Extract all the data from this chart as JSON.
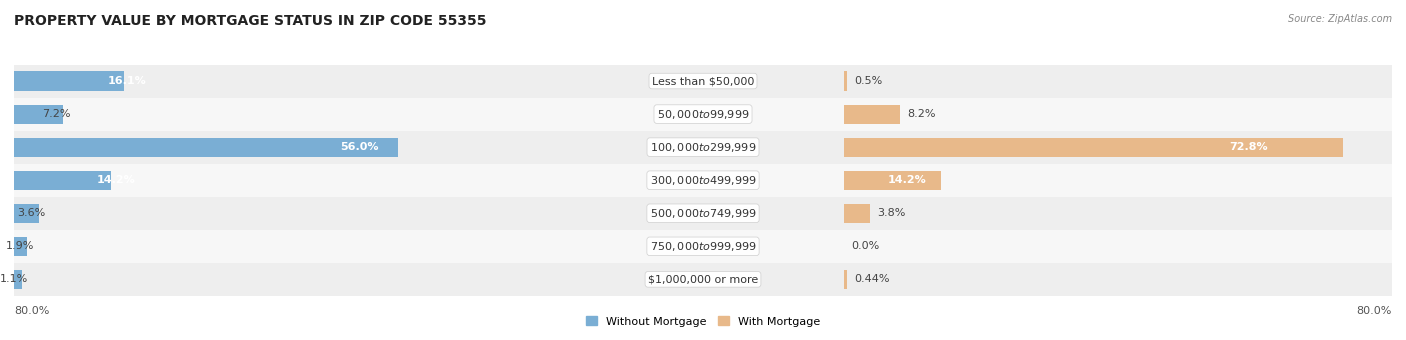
{
  "title": "PROPERTY VALUE BY MORTGAGE STATUS IN ZIP CODE 55355",
  "source": "Source: ZipAtlas.com",
  "categories": [
    "Less than $50,000",
    "$50,000 to $99,999",
    "$100,000 to $299,999",
    "$300,000 to $499,999",
    "$500,000 to $749,999",
    "$750,000 to $999,999",
    "$1,000,000 or more"
  ],
  "without_mortgage": [
    16.1,
    7.2,
    56.0,
    14.2,
    3.6,
    1.9,
    1.1
  ],
  "with_mortgage": [
    0.5,
    8.2,
    72.8,
    14.2,
    3.8,
    0.0,
    0.44
  ],
  "without_labels": [
    "16.1%",
    "7.2%",
    "56.0%",
    "14.2%",
    "3.6%",
    "1.9%",
    "1.1%"
  ],
  "with_labels": [
    "0.5%",
    "8.2%",
    "72.8%",
    "14.2%",
    "3.8%",
    "0.0%",
    "0.44%"
  ],
  "color_without": "#7aaed4",
  "color_with": "#e8b98a",
  "row_bg_color_odd": "#eeeeee",
  "row_bg_color_even": "#f7f7f7",
  "axis_label_left": "80.0%",
  "axis_label_right": "80.0%",
  "max_val": 80.0,
  "title_fontsize": 10,
  "label_fontsize": 8,
  "cat_fontsize": 8,
  "legend_label_without": "Without Mortgage",
  "legend_label_with": "With Mortgage"
}
